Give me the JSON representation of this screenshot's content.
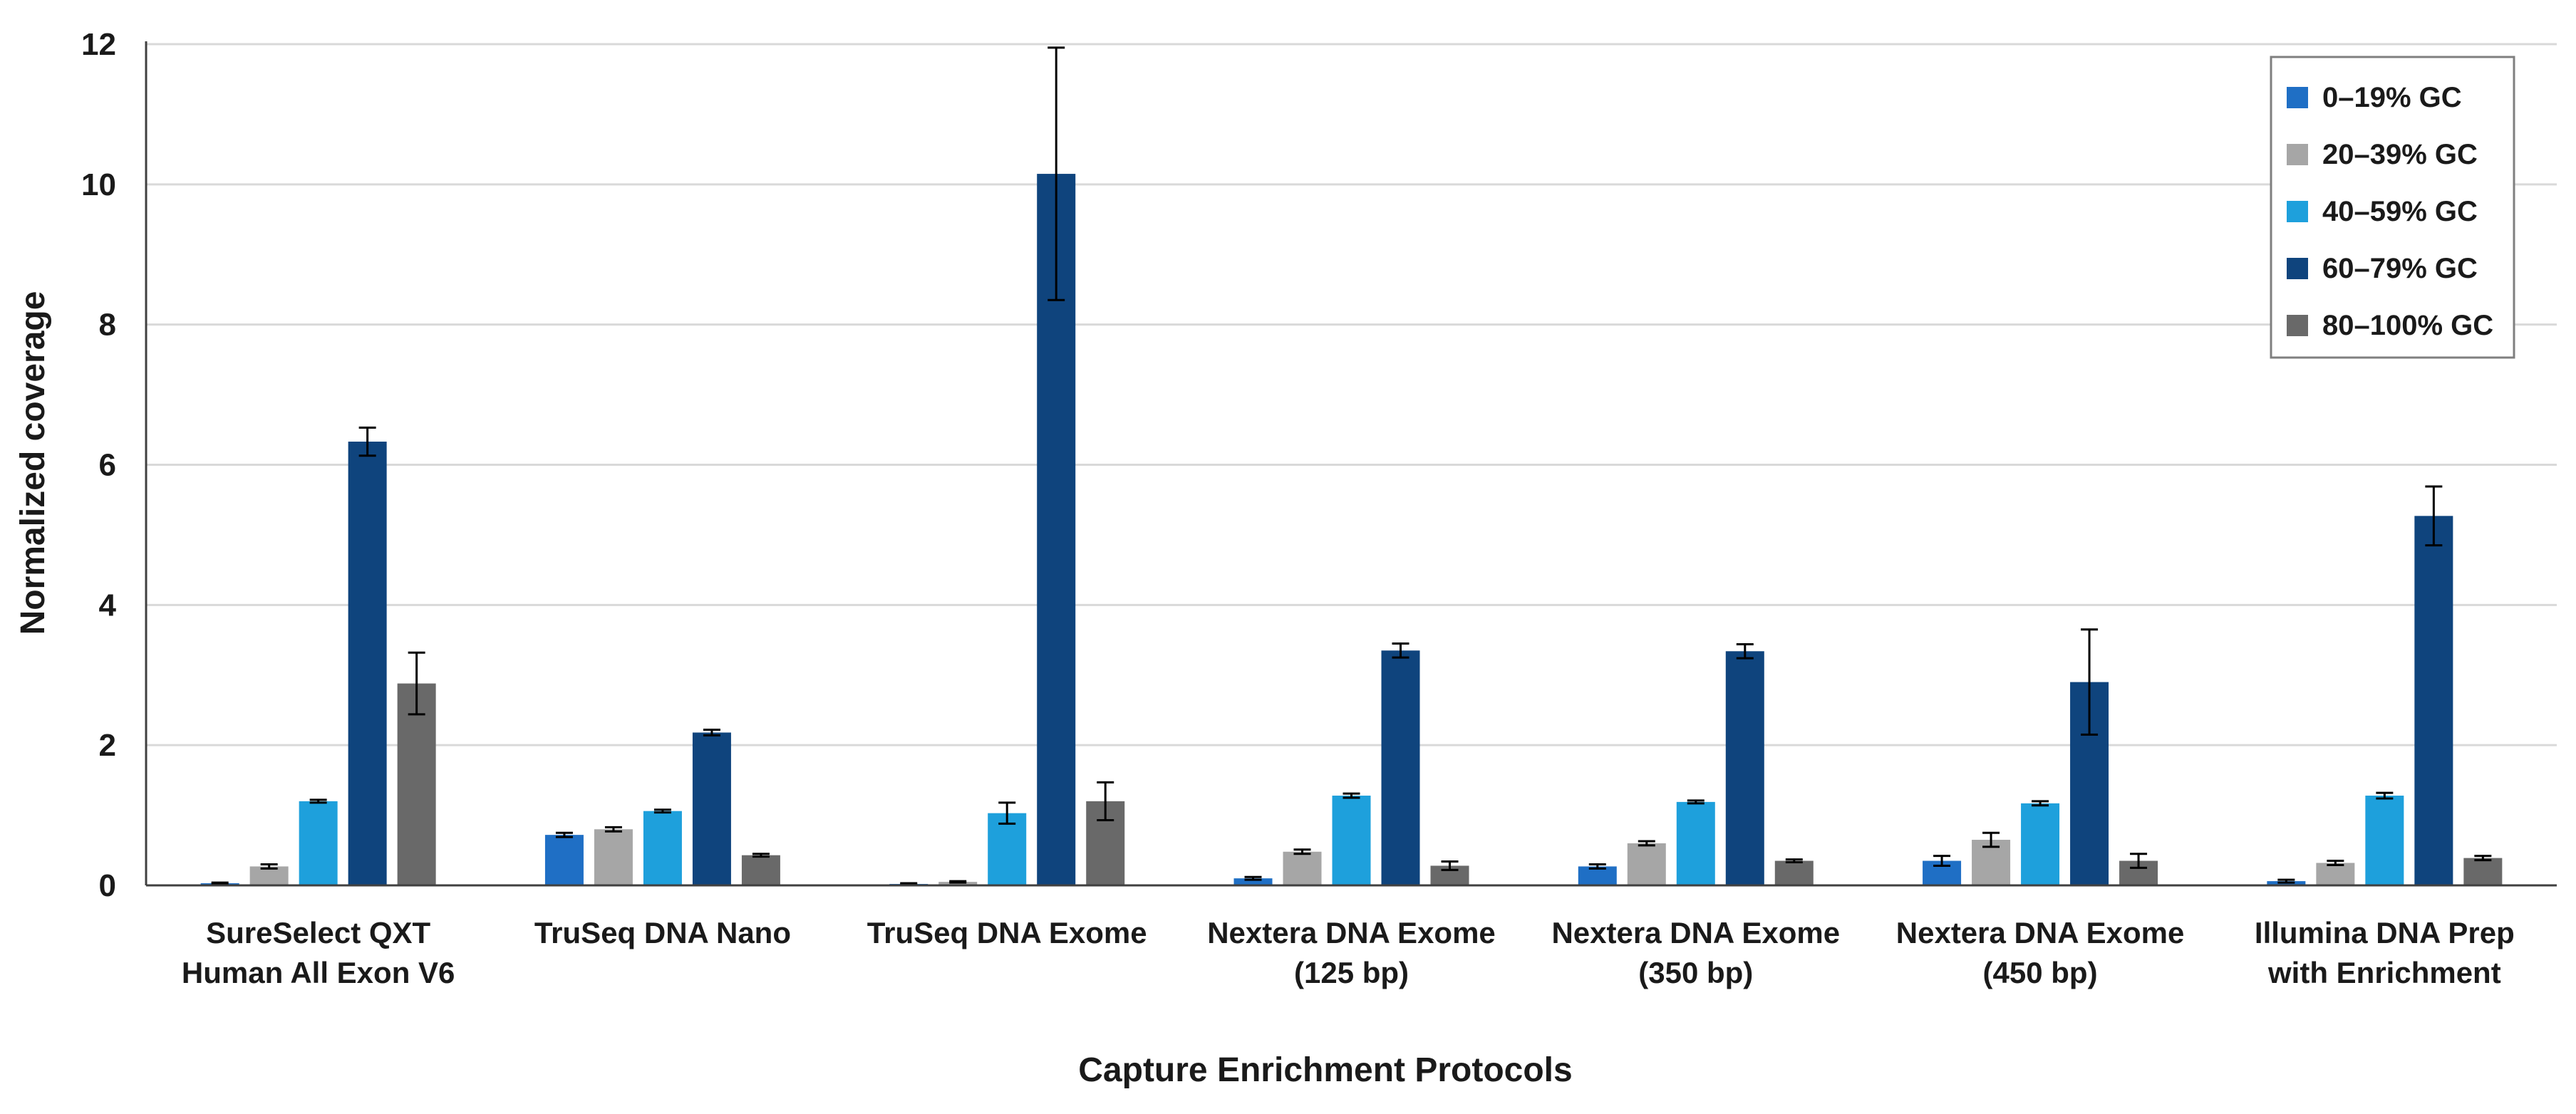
{
  "chart_data": {
    "type": "bar",
    "title": "",
    "xlabel": "Capture Enrichment Protocols",
    "ylabel": "Normalized coverage",
    "ylim": [
      0,
      12
    ],
    "yticks": [
      0,
      2,
      4,
      6,
      8,
      10,
      12
    ],
    "grid": true,
    "legend_position": "top-right",
    "categories": [
      [
        "SureSelect QXT",
        "Human All Exon V6"
      ],
      [
        "TruSeq DNA Nano"
      ],
      [
        "TruSeq DNA Exome"
      ],
      [
        "Nextera DNA Exome",
        "(125 bp)"
      ],
      [
        "Nextera DNA Exome",
        "(350 bp)"
      ],
      [
        "Nextera DNA Exome",
        "(450 bp)"
      ],
      [
        "Illumina DNA Prep",
        "with Enrichment"
      ]
    ],
    "series": [
      {
        "name": "0–19% GC",
        "color": "#1f6fc5",
        "values": [
          0.03,
          0.72,
          0.02,
          0.1,
          0.27,
          0.35,
          0.06
        ],
        "errors": [
          0.01,
          0.03,
          0.01,
          0.02,
          0.03,
          0.07,
          0.02
        ]
      },
      {
        "name": "20–39% GC",
        "color": "#a6a6a6",
        "values": [
          0.27,
          0.8,
          0.05,
          0.48,
          0.6,
          0.65,
          0.32
        ],
        "errors": [
          0.03,
          0.03,
          0.01,
          0.03,
          0.03,
          0.1,
          0.03
        ]
      },
      {
        "name": "40–59% GC",
        "color": "#1ea0dc",
        "values": [
          1.2,
          1.06,
          1.03,
          1.28,
          1.19,
          1.17,
          1.28
        ],
        "errors": [
          0.02,
          0.02,
          0.15,
          0.03,
          0.02,
          0.03,
          0.04
        ]
      },
      {
        "name": "60–79% GC",
        "color": "#0f447d",
        "values": [
          6.33,
          2.18,
          10.15,
          3.35,
          3.34,
          2.9,
          5.27
        ],
        "errors": [
          0.2,
          0.04,
          1.8,
          0.1,
          0.1,
          0.75,
          0.42
        ]
      },
      {
        "name": "80–100% GC",
        "color": "#696969",
        "values": [
          2.88,
          0.43,
          1.2,
          0.28,
          0.35,
          0.35,
          0.39
        ],
        "errors": [
          0.44,
          0.02,
          0.27,
          0.06,
          0.02,
          0.1,
          0.03
        ]
      }
    ]
  }
}
